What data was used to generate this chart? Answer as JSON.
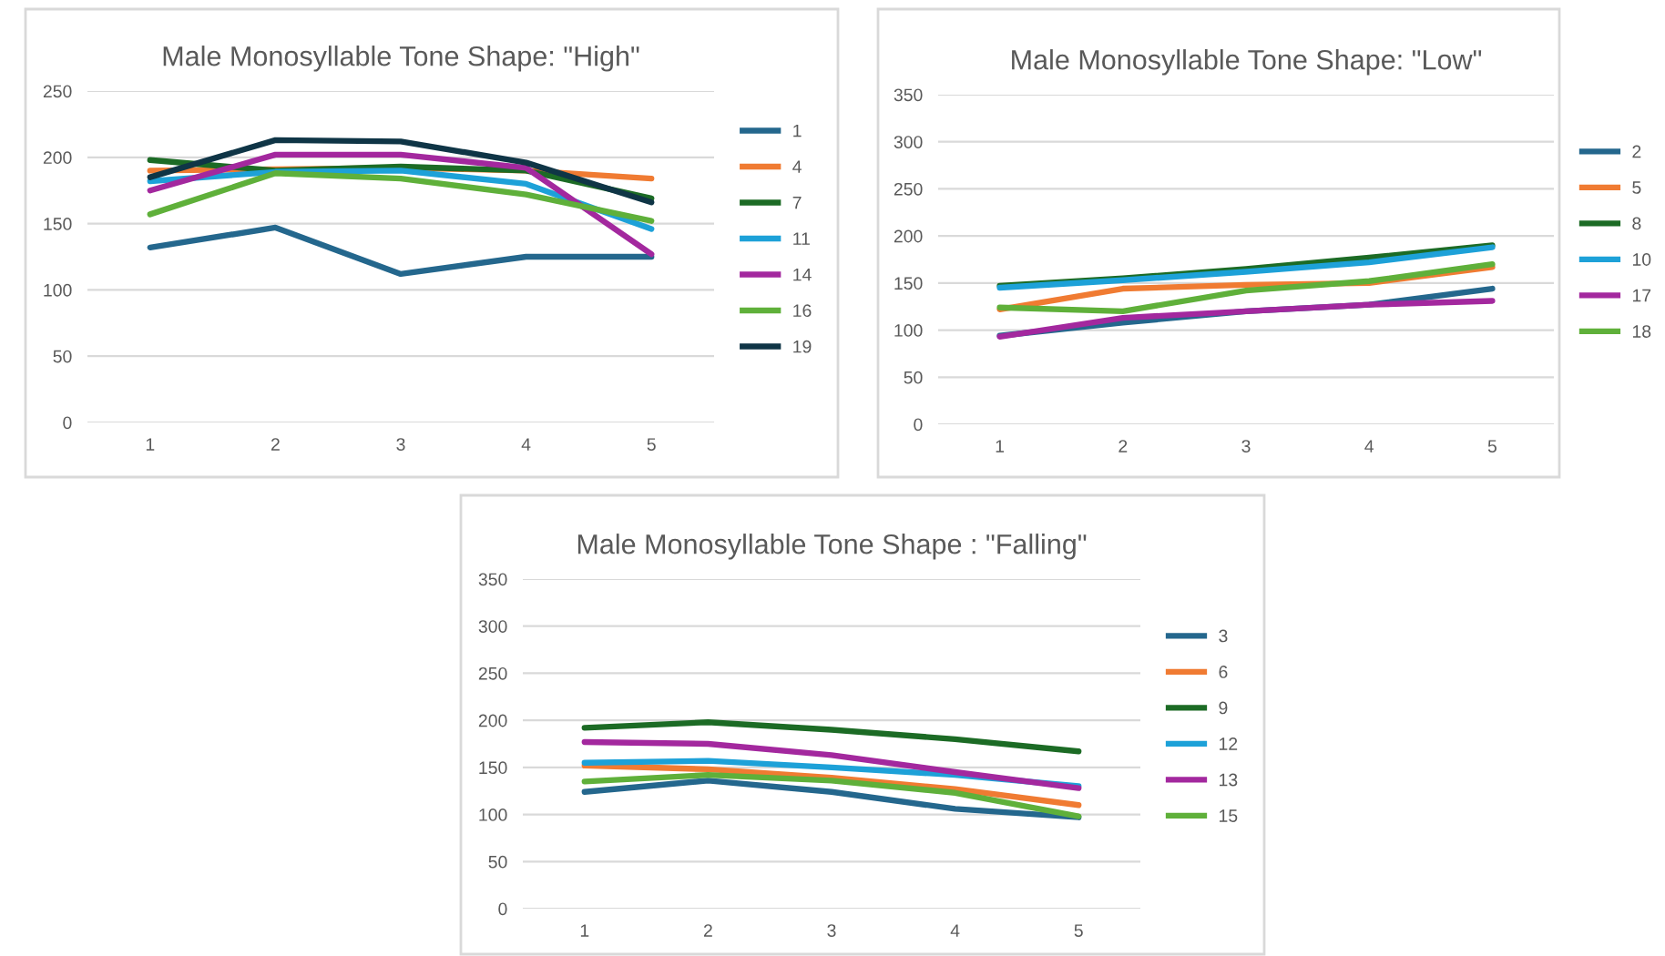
{
  "chart_data": [
    {
      "type": "line",
      "title": "Male Monosyllable Tone Shape: \"High\"",
      "categories": [
        "1",
        "2",
        "3",
        "4",
        "5"
      ],
      "ylim": [
        0,
        250
      ],
      "yticks": [
        0,
        50,
        100,
        150,
        200,
        250
      ],
      "grid": "y",
      "legend": "right",
      "series": [
        {
          "name": "1",
          "color": "#24678d",
          "values": [
            132,
            147,
            112,
            125,
            125
          ]
        },
        {
          "name": "4",
          "color": "#f07b32",
          "values": [
            190,
            191,
            192,
            190,
            184
          ]
        },
        {
          "name": "7",
          "color": "#1c6b25",
          "values": [
            198,
            190,
            193,
            190,
            169
          ]
        },
        {
          "name": "11",
          "color": "#1da1d8",
          "values": [
            182,
            189,
            190,
            180,
            146
          ]
        },
        {
          "name": "14",
          "color": "#a3289e",
          "values": [
            175,
            202,
            202,
            192,
            127
          ]
        },
        {
          "name": "16",
          "color": "#5fb03a",
          "values": [
            157,
            188,
            184,
            172,
            152
          ]
        },
        {
          "name": "19",
          "color": "#0f3546",
          "values": [
            185,
            213,
            212,
            196,
            166
          ]
        }
      ]
    },
    {
      "type": "line",
      "title": "Male Monosyllable Tone Shape: \"Low\"",
      "categories": [
        "1",
        "2",
        "3",
        "4",
        "5"
      ],
      "ylim": [
        0,
        350
      ],
      "yticks": [
        0,
        50,
        100,
        150,
        200,
        250,
        300,
        350
      ],
      "grid": "y",
      "legend": "right",
      "series": [
        {
          "name": "2",
          "color": "#24678d",
          "values": [
            94,
            108,
            120,
            127,
            144
          ]
        },
        {
          "name": "5",
          "color": "#f07b32",
          "values": [
            122,
            144,
            148,
            150,
            167
          ]
        },
        {
          "name": "8",
          "color": "#1c6b25",
          "values": [
            147,
            155,
            165,
            177,
            190
          ]
        },
        {
          "name": "10",
          "color": "#1da1d8",
          "values": [
            145,
            153,
            162,
            172,
            188
          ]
        },
        {
          "name": "17",
          "color": "#a3289e",
          "values": [
            93,
            113,
            120,
            127,
            131
          ]
        },
        {
          "name": "18",
          "color": "#5fb03a",
          "values": [
            124,
            120,
            142,
            152,
            170
          ]
        }
      ]
    },
    {
      "type": "line",
      "title": "Male Monosyllable Tone Shape : \"Falling\"",
      "categories": [
        "1",
        "2",
        "3",
        "4",
        "5"
      ],
      "ylim": [
        0,
        350
      ],
      "yticks": [
        0,
        50,
        100,
        150,
        200,
        250,
        300,
        350
      ],
      "grid": "y",
      "legend": "right",
      "series": [
        {
          "name": "3",
          "color": "#24678d",
          "values": [
            124,
            136,
            124,
            106,
            97
          ]
        },
        {
          "name": "6",
          "color": "#f07b32",
          "values": [
            152,
            148,
            139,
            127,
            110
          ]
        },
        {
          "name": "9",
          "color": "#1c6b25",
          "values": [
            192,
            198,
            190,
            180,
            167
          ]
        },
        {
          "name": "12",
          "color": "#1da1d8",
          "values": [
            155,
            157,
            150,
            142,
            130
          ]
        },
        {
          "name": "13",
          "color": "#a3289e",
          "values": [
            177,
            175,
            163,
            145,
            128
          ]
        },
        {
          "name": "15",
          "color": "#5fb03a",
          "values": [
            135,
            142,
            136,
            123,
            98
          ]
        }
      ]
    }
  ]
}
